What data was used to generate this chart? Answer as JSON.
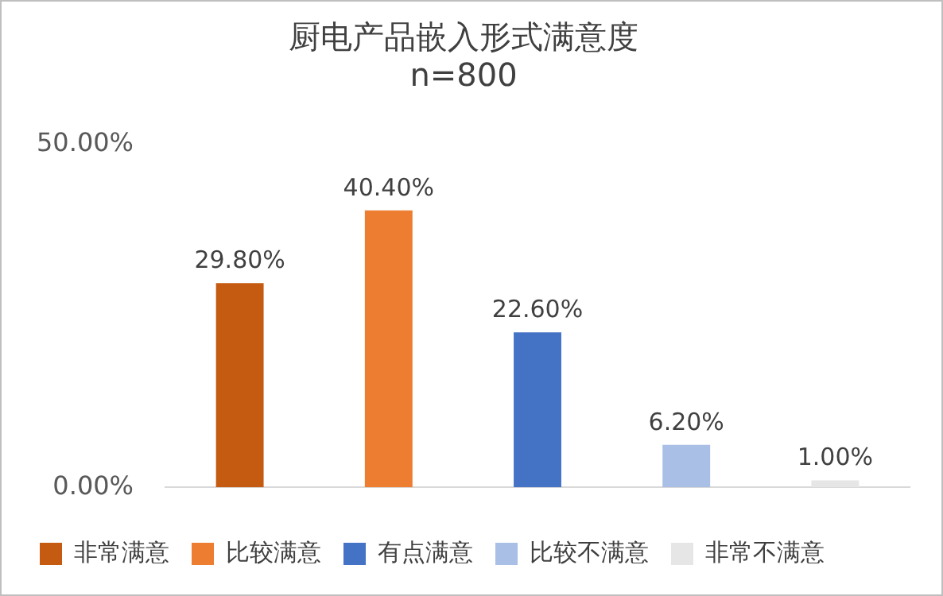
{
  "chart_data": {
    "type": "bar",
    "title": "厨电产品嵌入形式满意度",
    "subtitle": "n=800",
    "categories": [
      null
    ],
    "series": [
      {
        "name": "非常满意",
        "color": "#c55a11",
        "values": [
          29.8
        ],
        "value_labels": [
          "29.80%"
        ]
      },
      {
        "name": "比较满意",
        "color": "#ed7d31",
        "values": [
          40.4
        ],
        "value_labels": [
          "40.40%"
        ]
      },
      {
        "name": "有点满意",
        "color": "#4472c4",
        "values": [
          22.6
        ],
        "value_labels": [
          "22.60%"
        ]
      },
      {
        "name": "比较不满意",
        "color": "#a9bfe6",
        "values": [
          6.2
        ],
        "value_labels": [
          "6.20%"
        ]
      },
      {
        "name": "非常不满意",
        "color": "#e7e6e6",
        "values": [
          1.0
        ],
        "value_labels": [
          "1.00%"
        ]
      }
    ],
    "ylim": [
      0,
      50
    ],
    "yticks": [
      {
        "value": 0,
        "label": "0.00%"
      },
      {
        "value": 50,
        "label": "50.00%"
      }
    ],
    "grid": false,
    "legend": "bottom"
  }
}
